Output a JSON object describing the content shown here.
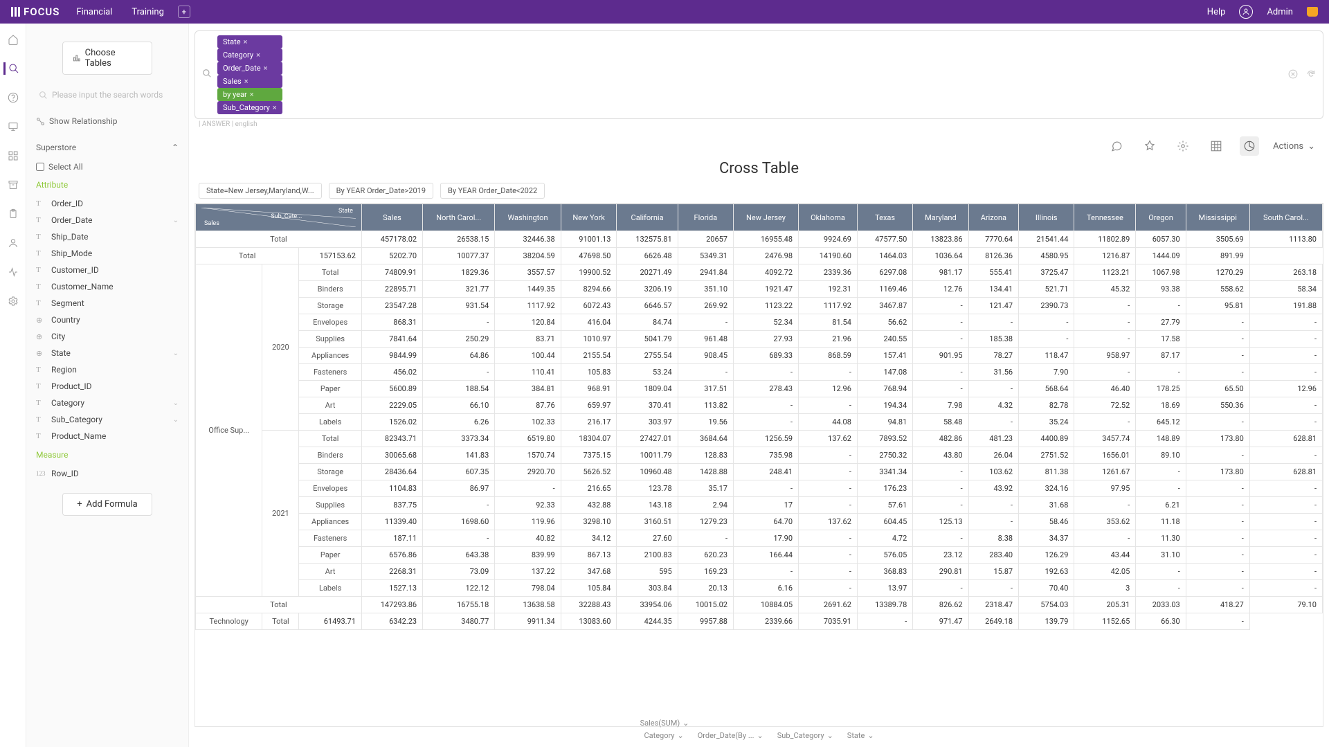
{
  "brand": "FOCUS",
  "topnav": [
    "Financial",
    "Training"
  ],
  "help": "Help",
  "user": "Admin",
  "choose_tables": "Choose Tables",
  "search_placeholder": "Please input the search words",
  "show_relationship": "Show Relationship",
  "datasource": "Superstore",
  "select_all": "Select All",
  "attribute_label": "Attribute",
  "measure_label": "Measure",
  "attributes": [
    {
      "icon": "T",
      "label": "Order_ID"
    },
    {
      "icon": "T",
      "label": "Order_Date",
      "chev": true
    },
    {
      "icon": "T",
      "label": "Ship_Date"
    },
    {
      "icon": "T",
      "label": "Ship_Mode"
    },
    {
      "icon": "T",
      "label": "Customer_ID"
    },
    {
      "icon": "T",
      "label": "Customer_Name"
    },
    {
      "icon": "T",
      "label": "Segment"
    },
    {
      "icon": "globe",
      "label": "Country"
    },
    {
      "icon": "globe",
      "label": "City"
    },
    {
      "icon": "globe",
      "label": "State",
      "chev": true
    },
    {
      "icon": "T",
      "label": "Region"
    },
    {
      "icon": "T",
      "label": "Product_ID"
    },
    {
      "icon": "T",
      "label": "Category",
      "chev": true
    },
    {
      "icon": "T",
      "label": "Sub_Category",
      "chev": true
    },
    {
      "icon": "T",
      "label": "Product_Name"
    }
  ],
  "measures": [
    {
      "icon": "123",
      "label": "Row_ID"
    }
  ],
  "add_formula": "Add Formula",
  "pills": [
    {
      "label": "State",
      "green": false
    },
    {
      "label": "Category",
      "green": false
    },
    {
      "label": "Order_Date",
      "green": false
    },
    {
      "label": "Sales",
      "green": false
    },
    {
      "label": "by  year",
      "green": true
    },
    {
      "label": "Sub_Category",
      "green": false
    }
  ],
  "answer_line": "| ANSWER | english",
  "actions": "Actions",
  "title": "Cross Table",
  "filters": [
    "State=New Jersey,Maryland,W...",
    "By YEAR Order_Date>2019",
    "By YEAR Order_Date<2022"
  ],
  "corner": {
    "top": "State",
    "mid": "Sub_Cate...",
    "bot": "Sales"
  },
  "columns": [
    "Sales",
    "North Carol...",
    "Washington",
    "New York",
    "California",
    "Florida",
    "New Jersey",
    "Oklahoma",
    "Texas",
    "Maryland",
    "Arizona",
    "Illinois",
    "Tennessee",
    "Oregon",
    "Mississippi",
    "South Carol..."
  ],
  "grand_total": {
    "label": "Total",
    "cells": [
      "457178.02",
      "26538.15",
      "32446.38",
      "91001.13",
      "132575.81",
      "20657",
      "16955.48",
      "9924.69",
      "47577.50",
      "13823.86",
      "7770.64",
      "21541.44",
      "11802.89",
      "6057.30",
      "3505.69",
      "1113.80"
    ]
  },
  "groups": [
    {
      "cat": "Office Sup...",
      "years": [
        {
          "year": "2020",
          "total": [
            "157153.62",
            "5202.70",
            "10077.37",
            "38204.59",
            "47698.50",
            "6626.48",
            "5349.31",
            "2476.98",
            "14190.60",
            "1464.03",
            "1036.64",
            "8126.36",
            "4580.95",
            "1216.87",
            "1444.09",
            "891.99"
          ],
          "subs": [
            {
              "label": "Total",
              "cells": [
                "74809.91",
                "1829.36",
                "3557.57",
                "19900.52",
                "20271.49",
                "2941.84",
                "4092.72",
                "2339.36",
                "6297.08",
                "981.17",
                "555.41",
                "3725.47",
                "1123.21",
                "1067.98",
                "1270.29",
                "263.18"
              ]
            },
            {
              "label": "Binders",
              "cells": [
                "22895.71",
                "321.77",
                "1449.35",
                "8294.66",
                "3206.19",
                "351.10",
                "1921.47",
                "192.31",
                "1169.46",
                "12.76",
                "134.41",
                "521.71",
                "45.32",
                "93.38",
                "558.62",
                "58.34"
              ]
            },
            {
              "label": "Storage",
              "cells": [
                "23547.28",
                "931.54",
                "1117.92",
                "6072.43",
                "6646.57",
                "269.92",
                "1123.22",
                "1117.92",
                "3467.87",
                "-",
                "121.47",
                "2390.73",
                "-",
                "-",
                "95.81",
                "191.88"
              ]
            },
            {
              "label": "Envelopes",
              "cells": [
                "868.31",
                "-",
                "120.84",
                "416.04",
                "84.74",
                "-",
                "52.34",
                "81.54",
                "56.62",
                "-",
                "-",
                "-",
                "-",
                "27.79",
                "-",
                "-"
              ]
            },
            {
              "label": "Supplies",
              "cells": [
                "7841.64",
                "250.29",
                "83.71",
                "1010.97",
                "5041.79",
                "961.48",
                "27.93",
                "21.96",
                "240.55",
                "-",
                "185.38",
                "-",
                "-",
                "17.58",
                "-",
                "-"
              ]
            },
            {
              "label": "Appliances",
              "cells": [
                "9844.99",
                "64.86",
                "100.44",
                "2155.54",
                "2755.54",
                "908.45",
                "689.33",
                "868.59",
                "157.41",
                "901.95",
                "78.27",
                "118.47",
                "958.97",
                "87.17",
                "-",
                "-"
              ]
            },
            {
              "label": "Fasteners",
              "cells": [
                "456.02",
                "-",
                "110.41",
                "105.83",
                "53.24",
                "-",
                "-",
                "-",
                "147.08",
                "-",
                "31.56",
                "7.90",
                "-",
                "-",
                "-",
                "-"
              ]
            },
            {
              "label": "Paper",
              "cells": [
                "5600.89",
                "188.54",
                "384.81",
                "968.91",
                "1809.04",
                "317.51",
                "278.43",
                "12.96",
                "768.94",
                "-",
                "-",
                "568.64",
                "46.40",
                "178.25",
                "65.50",
                "12.96"
              ]
            },
            {
              "label": "Art",
              "cells": [
                "2229.05",
                "66.10",
                "87.76",
                "659.97",
                "370.41",
                "113.82",
                "-",
                "-",
                "194.34",
                "7.98",
                "4.32",
                "82.78",
                "72.52",
                "18.69",
                "550.36",
                "-"
              ]
            },
            {
              "label": "Labels",
              "cells": [
                "1526.02",
                "6.26",
                "102.33",
                "216.17",
                "303.97",
                "19.56",
                "-",
                "44.08",
                "94.81",
                "58.48",
                "-",
                "35.24",
                "-",
                "645.12",
                "-",
                "-"
              ]
            }
          ]
        },
        {
          "year": "2021",
          "total": null,
          "subs": [
            {
              "label": "Total",
              "cells": [
                "82343.71",
                "3373.34",
                "6519.80",
                "18304.07",
                "27427.01",
                "3684.64",
                "1256.59",
                "137.62",
                "7893.52",
                "482.86",
                "481.23",
                "4400.89",
                "3457.74",
                "148.89",
                "173.80",
                "628.81"
              ]
            },
            {
              "label": "Binders",
              "cells": [
                "30065.68",
                "141.83",
                "1570.74",
                "7375.15",
                "10011.79",
                "128.83",
                "735.98",
                "-",
                "2750.32",
                "43.80",
                "26.04",
                "2751.52",
                "1656.01",
                "89.10",
                "-",
                "-"
              ]
            },
            {
              "label": "Storage",
              "cells": [
                "28436.64",
                "607.35",
                "2920.70",
                "5626.52",
                "10960.48",
                "1428.88",
                "248.41",
                "-",
                "3341.34",
                "-",
                "103.62",
                "811.38",
                "1261.67",
                "-",
                "173.80",
                "628.81"
              ]
            },
            {
              "label": "Envelopes",
              "cells": [
                "1104.83",
                "86.97",
                "-",
                "216.65",
                "123.78",
                "35.17",
                "-",
                "-",
                "176.23",
                "-",
                "43.92",
                "324.16",
                "97.95",
                "-",
                "-",
                "-"
              ]
            },
            {
              "label": "Supplies",
              "cells": [
                "837.75",
                "-",
                "92.33",
                "432.88",
                "143.18",
                "2.94",
                "17",
                "-",
                "57.61",
                "-",
                "-",
                "31.68",
                "-",
                "6.21",
                "-",
                "-"
              ]
            },
            {
              "label": "Appliances",
              "cells": [
                "11339.40",
                "1698.60",
                "119.96",
                "3298.10",
                "3160.51",
                "1279.23",
                "64.70",
                "137.62",
                "604.45",
                "125.13",
                "-",
                "58.46",
                "353.62",
                "11.18",
                "-",
                "-"
              ]
            },
            {
              "label": "Fasteners",
              "cells": [
                "187.11",
                "-",
                "40.82",
                "34.12",
                "27.60",
                "-",
                "17.90",
                "-",
                "4.72",
                "-",
                "8.38",
                "34.37",
                "-",
                "11.30",
                "-",
                "-"
              ]
            },
            {
              "label": "Paper",
              "cells": [
                "6576.86",
                "643.38",
                "839.99",
                "867.13",
                "2100.83",
                "620.23",
                "166.44",
                "-",
                "576.05",
                "23.12",
                "283.40",
                "126.29",
                "43.44",
                "31.10",
                "-",
                "-"
              ]
            },
            {
              "label": "Art",
              "cells": [
                "2268.31",
                "73.09",
                "137.22",
                "347.68",
                "595",
                "169.23",
                "-",
                "-",
                "368.83",
                "290.81",
                "15.87",
                "192.63",
                "42.05",
                "-",
                "-",
                "-"
              ]
            },
            {
              "label": "Labels",
              "cells": [
                "1527.13",
                "122.12",
                "798.04",
                "105.84",
                "303.84",
                "20.13",
                "6.16",
                "-",
                "13.97",
                "-",
                "-",
                "70.40",
                "3",
                "-",
                "-",
                "-"
              ]
            }
          ]
        }
      ],
      "after_total": [
        "147293.86",
        "16755.18",
        "13638.58",
        "32288.43",
        "33954.06",
        "10015.02",
        "10884.05",
        "2691.62",
        "13389.78",
        "826.62",
        "2318.47",
        "5754.03",
        "205.31",
        "2033.03",
        "418.27",
        "79.10"
      ]
    },
    {
      "cat": "Technology",
      "years": [
        {
          "year": "",
          "total": null,
          "subs": [
            {
              "label": "Total",
              "cells": [
                "61493.71",
                "6342.23",
                "3480.77",
                "9911.34",
                "13083.60",
                "4244.35",
                "9957.88",
                "2339.66",
                "7035.91",
                "-",
                "971.47",
                "2649.18",
                "139.79",
                "1152.65",
                "66.30",
                "-"
              ]
            }
          ]
        }
      ],
      "after_total": null
    }
  ],
  "footer_top": "Sales(SUM)",
  "footer": [
    "Category",
    "Order_Date(By ...",
    "Sub_Category",
    "State"
  ]
}
